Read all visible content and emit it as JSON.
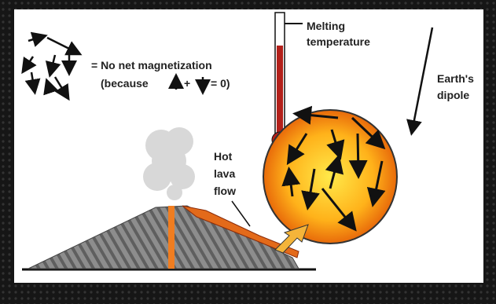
{
  "labels": {
    "no_net": "= No net magnetization",
    "because": "(because",
    "plus": "+",
    "equals_zero": "= 0)",
    "melting": [
      "Melting",
      "temperature"
    ],
    "dipole": [
      "Earth's",
      "dipole"
    ],
    "lava": [
      "Hot",
      "lava",
      "flow"
    ]
  }
}
